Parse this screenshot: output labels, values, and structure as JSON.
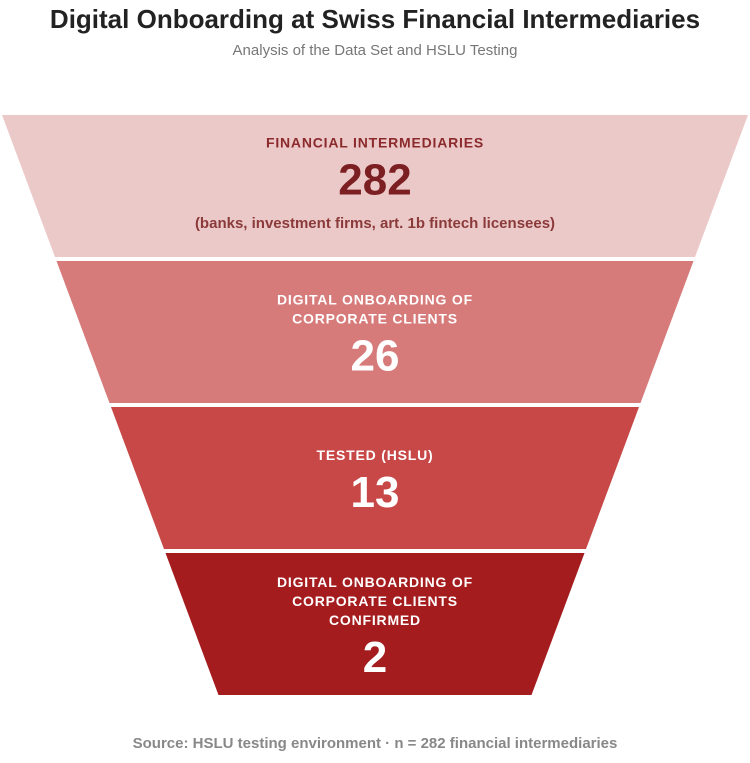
{
  "chart_data": {
    "type": "funnel",
    "title": "Digital Onboarding at Swiss Financial Intermediaries",
    "subtitle": "Analysis of the Data Set and HSLU Testing",
    "stages": [
      {
        "label": [
          "FINANCIAL INTERMEDIARIES"
        ],
        "value": 282,
        "note": "(banks, investment firms, art. 1b fintech licensees)",
        "color": "#ecc9c9",
        "text_color": "#7c1f22"
      },
      {
        "label": [
          "DIGITAL ONBOARDING OF",
          "CORPORATE CLIENTS"
        ],
        "value": 26,
        "color": "#d77a7a",
        "text_color": "#ffffff"
      },
      {
        "label": [
          "TESTED (HSLU)"
        ],
        "value": 13,
        "color": "#c84848",
        "text_color": "#ffffff"
      },
      {
        "label": [
          "DIGITAL ONBOARDING OF",
          "CORPORATE CLIENTS",
          "CONFIRMED"
        ],
        "value": 2,
        "color": "#a51c1f",
        "text_color": "#ffffff"
      }
    ],
    "source": "Source: HSLU testing environment · n = 282 financial intermediaries"
  }
}
